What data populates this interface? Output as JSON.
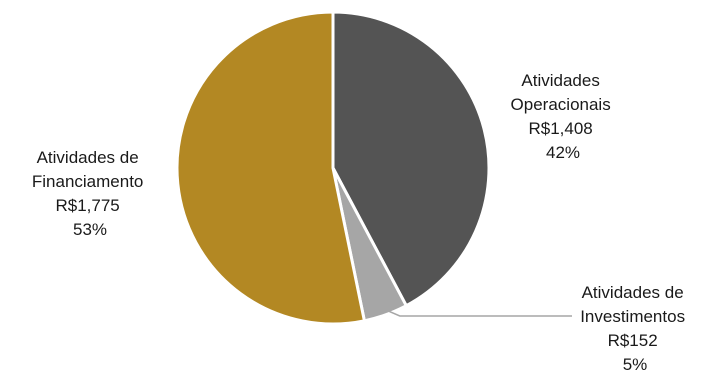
{
  "chart_data": {
    "type": "pie",
    "currency": "R$",
    "slices": [
      {
        "label_lines": [
          "Atividades",
          "Operacionais"
        ],
        "value": 1408,
        "value_text": "R$1,408",
        "percent": 42,
        "percent_text": "42%",
        "color": "#545454"
      },
      {
        "label_lines": [
          "Atividades de",
          "Investimentos"
        ],
        "value": 152,
        "value_text": "R$152",
        "percent": 5,
        "percent_text": "5%",
        "color": "#a6a6a6"
      },
      {
        "label_lines": [
          "Atividades de",
          "Financiamento"
        ],
        "value": 1775,
        "value_text": "R$1,775",
        "percent": 53,
        "percent_text": "53%",
        "color": "#b38823"
      }
    ],
    "start_angle_deg": 0,
    "direction": "clockwise",
    "legend": "none",
    "leader_line_color": "#a6a6a6"
  }
}
